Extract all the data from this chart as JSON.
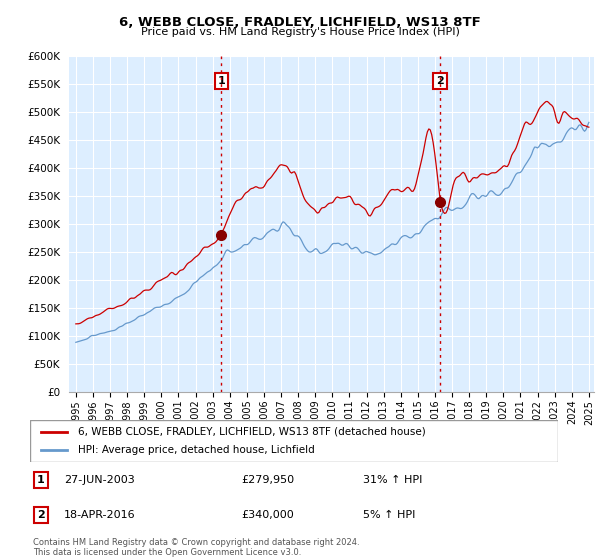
{
  "title": "6, WEBB CLOSE, FRADLEY, LICHFIELD, WS13 8TF",
  "subtitle": "Price paid vs. HM Land Registry's House Price Index (HPI)",
  "legend_line1": "6, WEBB CLOSE, FRADLEY, LICHFIELD, WS13 8TF (detached house)",
  "legend_line2": "HPI: Average price, detached house, Lichfield",
  "footer": "Contains HM Land Registry data © Crown copyright and database right 2024.\nThis data is licensed under the Open Government Licence v3.0.",
  "ylim": [
    0,
    600000
  ],
  "yticks": [
    0,
    50000,
    100000,
    150000,
    200000,
    250000,
    300000,
    350000,
    400000,
    450000,
    500000,
    550000,
    600000
  ],
  "hpi_color": "#6699cc",
  "price_color": "#cc0000",
  "vline_color": "#cc0000",
  "chart_bg": "#ddeeff",
  "background_color": "#ffffff",
  "sale1_x": 2003.5,
  "sale1_y": 279950,
  "sale2_x": 2016.3,
  "sale2_y": 340000,
  "xmin": 1994.6,
  "xmax": 2025.3
}
